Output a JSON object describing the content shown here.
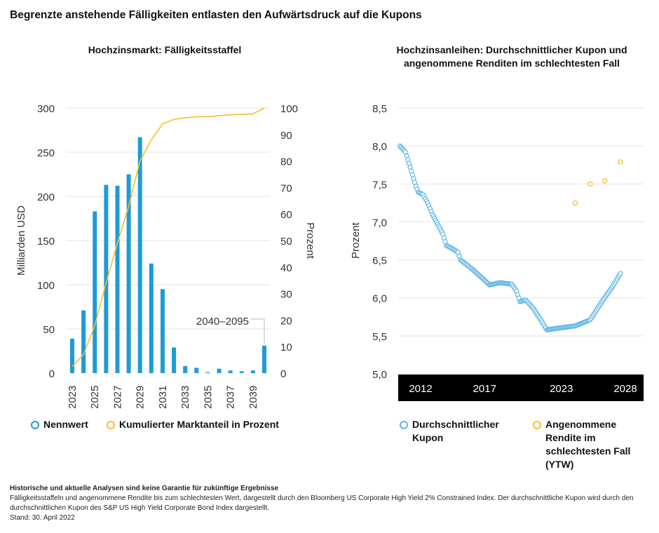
{
  "title": "Begrenzte anstehende Fälligkeiten entlasten den Aufwärtsdruck auf die Kupons",
  "colors": {
    "blue": "#1e9bd7",
    "yellow": "#fbbc2c",
    "light_blue": "#5fb6e6",
    "grid": "#e3e3e3",
    "axis_band": "#000000"
  },
  "chart_data": [
    {
      "type": "bar",
      "title": "Hochzinsmarkt: Fälligkeitsstaffel",
      "ylabel": "Milliarden USD",
      "y2label": "Prozent",
      "ylim": [
        0,
        300
      ],
      "y2lim": [
        0,
        100
      ],
      "yticks": [
        "0",
        "50",
        "100",
        "150",
        "200",
        "250",
        "300"
      ],
      "y2ticks": [
        "0",
        "10",
        "20",
        "30",
        "40",
        "50",
        "60",
        "70",
        "80",
        "90",
        "100"
      ],
      "grid": true,
      "categories": [
        "2023",
        "2024",
        "2025",
        "2026",
        "2027",
        "2028",
        "2029",
        "2030",
        "2031",
        "2032",
        "2033",
        "2034",
        "2035",
        "2036",
        "2037",
        "2038",
        "2039",
        "2040–2095"
      ],
      "xtick_labels": [
        "2023",
        "2025",
        "2027",
        "2029",
        "2031",
        "2033",
        "2035",
        "2037",
        "2039"
      ],
      "annotation": "2040–2095",
      "series": [
        {
          "name": "Nennwert",
          "type": "bar",
          "axis": "left",
          "values": [
            39,
            71,
            183,
            213,
            212,
            225,
            267,
            124,
            95,
            29,
            8,
            6,
            1,
            5,
            3,
            2,
            3,
            31
          ]
        },
        {
          "name": "Kumulierter Marktanteil in Prozent",
          "type": "line",
          "axis": "right",
          "values": [
            2.5,
            7,
            18,
            34,
            49,
            63,
            80,
            88,
            94,
            95.7,
            96.3,
            96.7,
            96.7,
            97.1,
            97.4,
            97.6,
            97.8,
            100
          ]
        }
      ],
      "legend": "bottom"
    },
    {
      "type": "scatter",
      "title": "Hochzinsanleihen: Durchschnittlicher Kupon und angenommene Renditen im schlechtesten Fall",
      "ylabel": "Prozent",
      "ylim": [
        5.0,
        8.5
      ],
      "yticks": [
        "5,0",
        "5,5",
        "6,0",
        "6,5",
        "7,0",
        "7,5",
        "8,0",
        "8,5"
      ],
      "xticks": [
        "2012",
        "2017",
        "2023",
        "2028"
      ],
      "grid": true,
      "series": [
        {
          "name": "Durchschnittlicher Kupon",
          "points": [
            [
              2010.39,
              8.0
            ],
            [
              2010.81,
              7.92
            ],
            [
              2011.0,
              7.82
            ],
            [
              2011.63,
              7.47
            ],
            [
              2011.82,
              7.39
            ],
            [
              2012.18,
              7.36
            ],
            [
              2012.55,
              7.25
            ],
            [
              2012.92,
              7.1
            ],
            [
              2013.74,
              6.84
            ],
            [
              2014.01,
              6.69
            ],
            [
              2014.56,
              6.64
            ],
            [
              2014.92,
              6.6
            ],
            [
              2015.11,
              6.5
            ],
            [
              2015.65,
              6.43
            ],
            [
              2016.02,
              6.38
            ],
            [
              2016.75,
              6.27
            ],
            [
              2017.39,
              6.17
            ],
            [
              2018.21,
              6.2
            ],
            [
              2019.12,
              6.18
            ],
            [
              2019.49,
              6.09
            ],
            [
              2019.76,
              5.95
            ],
            [
              2020.22,
              5.97
            ],
            [
              2020.77,
              5.87
            ],
            [
              2021.5,
              5.68
            ],
            [
              2021.86,
              5.58
            ],
            [
              2024.05,
              5.63
            ],
            [
              2025.24,
              5.71
            ],
            [
              2026.25,
              5.97
            ],
            [
              2027.0,
              6.15
            ],
            [
              2027.62,
              6.32
            ]
          ]
        },
        {
          "name": "Angenommene Rendite im schlechtesten Fall (YTW)",
          "points": [
            [
              2024.09,
              7.25
            ],
            [
              2025.26,
              7.5
            ],
            [
              2026.39,
              7.54
            ],
            [
              2027.62,
              7.79
            ]
          ]
        }
      ],
      "legend": "bottom"
    }
  ],
  "legend_left": [
    "Nennwert",
    "Kumulierter Marktanteil in Prozent"
  ],
  "legend_right": [
    "Durchschnittlicher Kupon",
    "Angenommene Rendite im schlechtesten Fall (YTW)"
  ],
  "footer": {
    "disclaimer": "Historische und aktuelle Analysen sind keine Garantie für zukünftige Ergebnisse",
    "note": "Fälligkeitsstaffeln und angenommene Rendite bis zum schlechtesten Wert, dargestellt durch den Bloomberg US Corporate High Yield 2% Constrained Index. Der durchschnittliche Kupon wird durch den durchschnittlichen Kupon des S&P US High Yield Corporate Bond Index dargestellt.",
    "date": "Stand: 30. April 2022"
  }
}
